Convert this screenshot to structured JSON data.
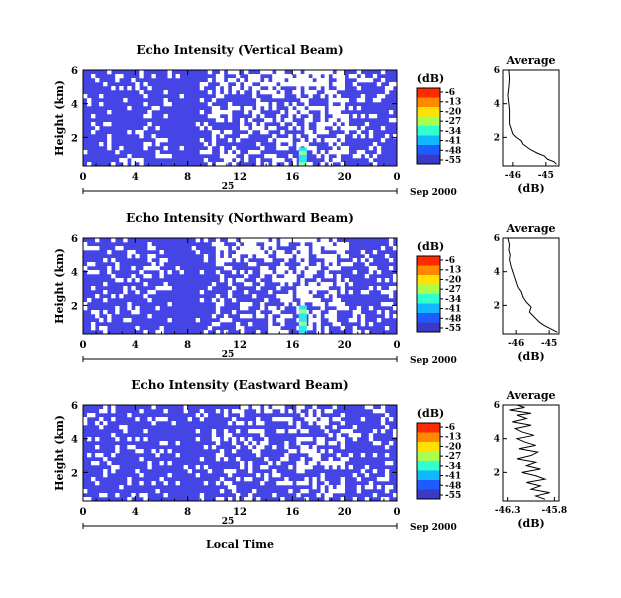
{
  "figure": {
    "xlabel": "Local Time",
    "date_label": "Sep 2000",
    "day_label": "25"
  },
  "colorbar": {
    "unit": "(dB)",
    "ticks": [
      "-6",
      "-13",
      "-20",
      "-27",
      "-34",
      "-41",
      "-48",
      "-55"
    ],
    "colors": [
      "#ff2a00",
      "#ff8a00",
      "#ffe000",
      "#a8ff50",
      "#30ffd0",
      "#0fb8ff",
      "#1f5cff",
      "#3a3ac8"
    ]
  },
  "colors": {
    "background_cell": "#4545e6",
    "bright_cell": "#2de8ea",
    "ltgreen_cell": "#8fffa0"
  },
  "chart_data": [
    {
      "type": "heatmap",
      "title": "Echo Intensity (Vertical Beam)",
      "ylabel": "Height (km)",
      "xticks": [
        "0",
        "4",
        "8",
        "12",
        "16",
        "20",
        "0"
      ],
      "yticks": [
        "6",
        "4",
        "2"
      ],
      "xlim": [
        0,
        24
      ],
      "ylim": [
        0.3,
        6
      ],
      "grid": false,
      "strong_echo": {
        "time": 16.8,
        "height_range": [
          0.3,
          1.4
        ],
        "value_db": -34
      },
      "average": {
        "type": "line",
        "title": "Average",
        "xlabel": "(dB)",
        "xticks": [
          "-46",
          "-45"
        ],
        "yticks": [
          "6",
          "4",
          "2"
        ],
        "xlim": [
          -46.3,
          -44.6
        ],
        "ylim": [
          0.3,
          6
        ],
        "x": [
          -44.68,
          -44.75,
          -44.95,
          -45.05,
          -45.25,
          -45.45,
          -45.6,
          -45.7,
          -45.75,
          -45.9,
          -46.0,
          -46.05,
          -46.1,
          -46.1,
          -46.1,
          -46.12,
          -46.15,
          -46.12,
          -46.1,
          -46.12
        ],
        "y": [
          0.4,
          0.55,
          0.7,
          0.9,
          1.05,
          1.25,
          1.45,
          1.6,
          1.8,
          2.0,
          2.2,
          2.5,
          2.8,
          3.2,
          3.6,
          4.0,
          4.5,
          5.0,
          5.5,
          6.0
        ]
      }
    },
    {
      "type": "heatmap",
      "title": "Echo Intensity (Northward Beam)",
      "ylabel": "Height (km)",
      "xticks": [
        "0",
        "4",
        "8",
        "12",
        "16",
        "20",
        "0"
      ],
      "yticks": [
        "6",
        "4",
        "2"
      ],
      "xlim": [
        0,
        24
      ],
      "ylim": [
        0.3,
        6
      ],
      "grid": false,
      "strong_echo": {
        "time": 16.8,
        "height_range": [
          0.3,
          2.0
        ],
        "value_db": -34
      },
      "average": {
        "type": "line",
        "title": "Average",
        "xlabel": "(dB)",
        "xticks": [
          "-46",
          "-45"
        ],
        "yticks": [
          "6",
          "4",
          "2"
        ],
        "xlim": [
          -46.4,
          -44.7
        ],
        "ylim": [
          0.3,
          6
        ],
        "x": [
          -44.75,
          -44.95,
          -45.15,
          -45.3,
          -45.45,
          -45.6,
          -45.55,
          -45.7,
          -45.8,
          -45.85,
          -45.95,
          -46.0,
          -46.05,
          -46.1,
          -46.15,
          -46.2,
          -46.18,
          -46.22,
          -46.2,
          -46.25
        ],
        "y": [
          0.4,
          0.6,
          0.8,
          1.0,
          1.3,
          1.6,
          1.9,
          2.2,
          2.5,
          2.8,
          3.1,
          3.4,
          3.7,
          4.0,
          4.3,
          4.7,
          5.0,
          5.3,
          5.6,
          6.0
        ]
      }
    },
    {
      "type": "heatmap",
      "title": "Echo Intensity (Eastward Beam)",
      "ylabel": "Height (km)",
      "xticks": [
        "0",
        "4",
        "8",
        "12",
        "16",
        "20",
        "0"
      ],
      "yticks": [
        "6",
        "4",
        "2"
      ],
      "xlim": [
        0,
        24
      ],
      "ylim": [
        0.3,
        6
      ],
      "grid": false,
      "average": {
        "type": "line",
        "title": "Average",
        "xlabel": "(dB)",
        "xticks": [
          "-46.3",
          "-45.8"
        ],
        "yticks": [
          "6",
          "4",
          "2"
        ],
        "xlim": [
          -46.35,
          -45.75
        ],
        "ylim": [
          0.3,
          6
        ],
        "x": [
          -45.9,
          -46.0,
          -45.85,
          -46.05,
          -45.95,
          -46.1,
          -45.9,
          -46.0,
          -46.15,
          -45.95,
          -46.1,
          -46.0,
          -46.2,
          -46.05,
          -45.98,
          -46.18,
          -46.0,
          -46.12,
          -46.2,
          -46.02,
          -46.15,
          -46.22,
          -46.05,
          -46.25,
          -46.1,
          -46.2,
          -46.05,
          -46.28,
          -46.12,
          -46.2
        ],
        "y": [
          0.4,
          0.6,
          0.8,
          1.0,
          1.2,
          1.4,
          1.6,
          1.8,
          2.0,
          2.2,
          2.4,
          2.6,
          2.8,
          3.0,
          3.2,
          3.4,
          3.6,
          3.8,
          4.0,
          4.2,
          4.4,
          4.6,
          4.8,
          5.0,
          5.2,
          5.4,
          5.5,
          5.7,
          5.85,
          6.0
        ]
      }
    }
  ]
}
